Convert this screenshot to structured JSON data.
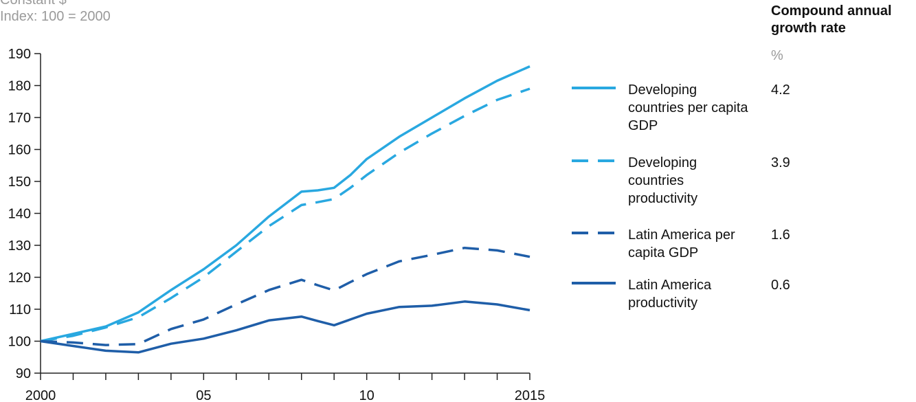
{
  "subtitle_lines": [
    "Constant $",
    "Index: 100 = 2000"
  ],
  "growth_header": "Compound annual growth rate",
  "growth_unit": "%",
  "chart_data": {
    "type": "line",
    "x": [
      2000,
      2001,
      2002,
      2003,
      2004,
      2005,
      2006,
      2007,
      2008,
      2008.5,
      2009,
      2009.5,
      2010,
      2011,
      2012,
      2013,
      2014,
      2015
    ],
    "xticks": [
      2000,
      2001,
      2002,
      2003,
      2004,
      2005,
      2006,
      2007,
      2008,
      2009,
      2010,
      2011,
      2012,
      2013,
      2014,
      2015
    ],
    "xtick_labels": [
      {
        "x": 2000,
        "label": "2000"
      },
      {
        "x": 2005,
        "label": "05"
      },
      {
        "x": 2010,
        "label": "10"
      },
      {
        "x": 2015,
        "label": "2015"
      }
    ],
    "yticks": [
      90,
      100,
      110,
      120,
      130,
      140,
      150,
      160,
      170,
      180,
      190
    ],
    "ylim": [
      90,
      190
    ],
    "xlim": [
      2000,
      2015
    ],
    "series": [
      {
        "name": "Developing countries per capita GDP",
        "rate": "4.2",
        "color": "#29a8e0",
        "dash": "solid",
        "values": [
          100,
          102.3,
          104.6,
          109,
          116,
          122.5,
          130,
          139,
          146.8,
          147.2,
          148,
          152,
          157,
          164,
          170,
          176,
          181.5,
          186
        ]
      },
      {
        "name": "Developing countries productivity",
        "rate": "3.9",
        "color": "#29a8e0",
        "dash": "long",
        "values": [
          100,
          101.7,
          104.3,
          107.5,
          113.5,
          120,
          128,
          136,
          142.6,
          143.5,
          144.5,
          148,
          152,
          159,
          165,
          170.5,
          175.5,
          179
        ]
      },
      {
        "name": "Latin America per capita GDP",
        "rate": "1.6",
        "color": "#1f5ea8",
        "dash": "long",
        "values": [
          100,
          99.6,
          98.8,
          99.1,
          103.8,
          106.8,
          111.5,
          116,
          119.2,
          117.5,
          115.9,
          118.5,
          121,
          125,
          127,
          129.2,
          128.4,
          126.4
        ]
      },
      {
        "name": "Latin America productivity",
        "rate": "0.6",
        "color": "#1f5ea8",
        "dash": "solid",
        "values": [
          100,
          98.5,
          97,
          96.5,
          99.2,
          100.8,
          103.4,
          106.5,
          107.7,
          106.3,
          105,
          106.8,
          108.6,
          110.7,
          111.1,
          112.4,
          111.5,
          109.7
        ]
      }
    ]
  }
}
